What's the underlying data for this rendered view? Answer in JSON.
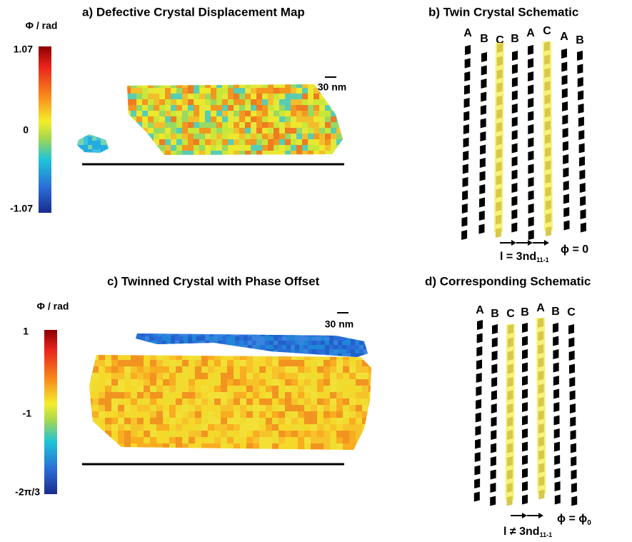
{
  "panels": [
    {
      "title": "a) Defective Crystal Displacement Map",
      "colorbar": {
        "label": "Φ / rad",
        "ticks": [
          "1.07",
          "0",
          "-1.07"
        ]
      },
      "scale_bar": "30 nm"
    },
    {
      "title": "b) Twin Crystal Schematic",
      "layers": [
        "A",
        "B",
        "C",
        "B",
        "A",
        "C",
        "A",
        "B"
      ],
      "spacing": {
        "text": "l = 3nd",
        "subscript": "11-1"
      },
      "phase": {
        "text": "ϕ = 0"
      }
    },
    {
      "title": "c) Twinned Crystal with Phase Offset",
      "colorbar": {
        "label": "Φ / rad",
        "ticks": [
          "1",
          "-1",
          "-2π/3"
        ]
      },
      "scale_bar": "30 nm"
    },
    {
      "title": "d) Corresponding Schematic",
      "layers": [
        "A",
        "B",
        "C",
        "B",
        "A",
        "B",
        "C"
      ],
      "spacing": {
        "text": "l ≠ 3nd",
        "subscript": "11-1"
      },
      "phase": {
        "text": "ϕ = ϕ",
        "subscript": "0"
      }
    }
  ]
}
